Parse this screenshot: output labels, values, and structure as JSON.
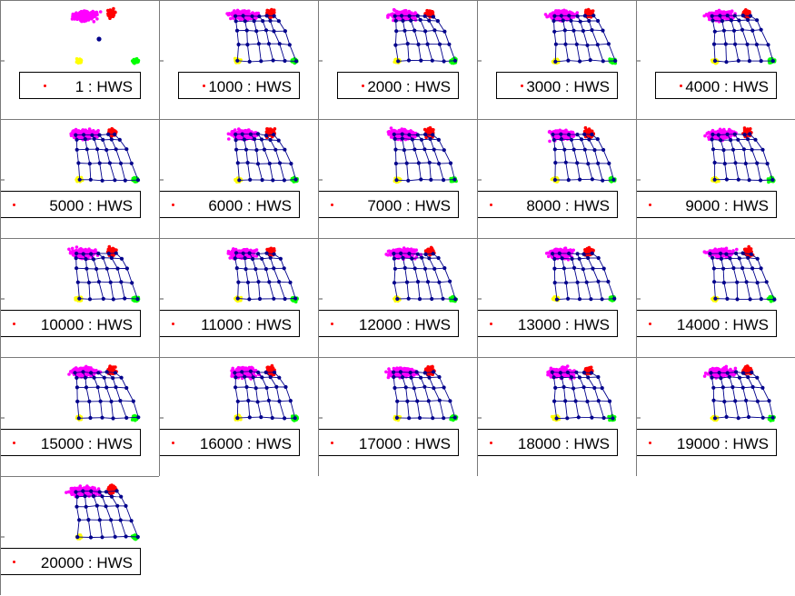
{
  "figure": {
    "colors": {
      "cluster_magenta": "#ff00ff",
      "cluster_red": "#ff0000",
      "cluster_yellow": "#ffff00",
      "cluster_green": "#00ff00",
      "network": "#00008b",
      "legend_marker": "#ff0000"
    }
  },
  "chart_data": {
    "type": "scatter",
    "layout": "grid 5 columns x 5 rows, 21 panels",
    "legend_placement": "bottom",
    "panels": [
      {
        "legend": "1 : HWS",
        "iteration": 1
      },
      {
        "legend": "1000 : HWS",
        "iteration": 1000
      },
      {
        "legend": "2000 : HWS",
        "iteration": 2000
      },
      {
        "legend": "3000 : HWS",
        "iteration": 3000
      },
      {
        "legend": "4000 : HWS",
        "iteration": 4000
      },
      {
        "legend": "5000 : HWS",
        "iteration": 5000
      },
      {
        "legend": "6000 : HWS",
        "iteration": 6000
      },
      {
        "legend": "7000 : HWS",
        "iteration": 7000
      },
      {
        "legend": "8000 : HWS",
        "iteration": 8000
      },
      {
        "legend": "9000 : HWS",
        "iteration": 9000
      },
      {
        "legend": "10000 : HWS",
        "iteration": 10000
      },
      {
        "legend": "11000 : HWS",
        "iteration": 11000
      },
      {
        "legend": "12000 : HWS",
        "iteration": 12000
      },
      {
        "legend": "13000 : HWS",
        "iteration": 13000
      },
      {
        "legend": "14000 : HWS",
        "iteration": 14000
      },
      {
        "legend": "15000 : HWS",
        "iteration": 15000
      },
      {
        "legend": "16000 : HWS",
        "iteration": 16000
      },
      {
        "legend": "17000 : HWS",
        "iteration": 17000
      },
      {
        "legend": "18000 : HWS",
        "iteration": 18000
      },
      {
        "legend": "19000 : HWS",
        "iteration": 19000
      },
      {
        "legend": "20000 : HWS",
        "iteration": 20000
      }
    ]
  }
}
